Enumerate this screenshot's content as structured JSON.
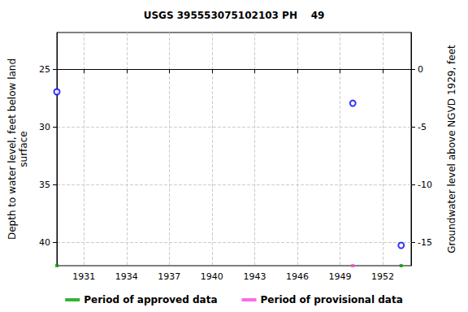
{
  "chart_data": {
    "type": "scatter",
    "title": "USGS 395553075102103 PH    49",
    "x_label": null,
    "y_label": "Depth to water level, feet below land\nsurface",
    "y2_label": "Groundwater level above NGVD 1929, feet",
    "xlim": [
      1929.1,
      1954.0
    ],
    "xticks": [
      1931,
      1934,
      1937,
      1940,
      1943,
      1946,
      1949,
      1952
    ],
    "ylim": [
      21.83,
      42.04
    ],
    "yticks": [
      25,
      30,
      35,
      40
    ],
    "y2lim": [
      -17.04,
      3.17
    ],
    "y2ticks": [
      0,
      -5,
      -10,
      -15
    ],
    "grid": true,
    "legend": "bottom",
    "series": [
      {
        "color": "#0000ff",
        "marker": "open_circle",
        "x": [
          1929.1,
          1949.9,
          1953.3
        ],
        "values": [
          26.97,
          27.96,
          40.28
        ]
      }
    ],
    "periods": [
      {
        "name": "Period of approved data",
        "color": "#00a000",
        "x": [
          1929.1,
          1953.3
        ]
      },
      {
        "name": "Period of provisional data",
        "color": "#ff44dd",
        "x": [
          1949.9
        ]
      }
    ]
  }
}
